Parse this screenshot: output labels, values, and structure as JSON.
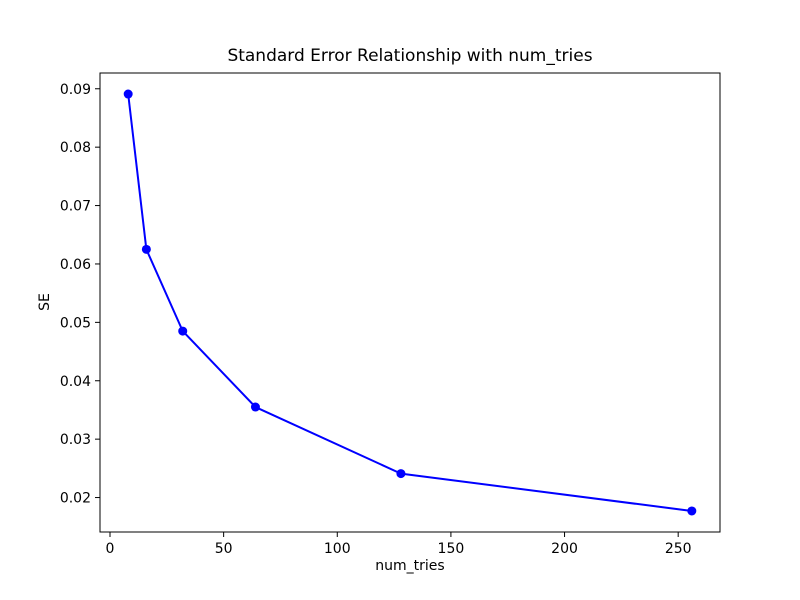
{
  "figure": {
    "background": "#ffffff",
    "text_color": "#000000",
    "spine_color": "#000000"
  },
  "chart_data": {
    "type": "line",
    "title": "Standard Error Relationship with num_tries",
    "xlabel": "num_tries",
    "ylabel": "SE",
    "x": [
      8,
      16,
      32,
      64,
      128,
      256
    ],
    "y": [
      0.0891,
      0.0625,
      0.0485,
      0.0355,
      0.0241,
      0.0177
    ],
    "series_name": "SE",
    "line_color": "#0000ff",
    "marker": "circle",
    "grid": false,
    "legend": null,
    "xlim": [
      -4.4,
      268.4
    ],
    "ylim": [
      0.0141,
      0.0927
    ],
    "xticks": [
      0,
      50,
      100,
      150,
      200,
      250
    ],
    "xtick_labels": [
      "0",
      "50",
      "100",
      "150",
      "200",
      "250"
    ],
    "yticks": [
      0.02,
      0.03,
      0.04,
      0.05,
      0.06,
      0.07,
      0.08,
      0.09
    ],
    "ytick_labels": [
      "0.02",
      "0.03",
      "0.04",
      "0.05",
      "0.06",
      "0.07",
      "0.08",
      "0.09"
    ]
  }
}
